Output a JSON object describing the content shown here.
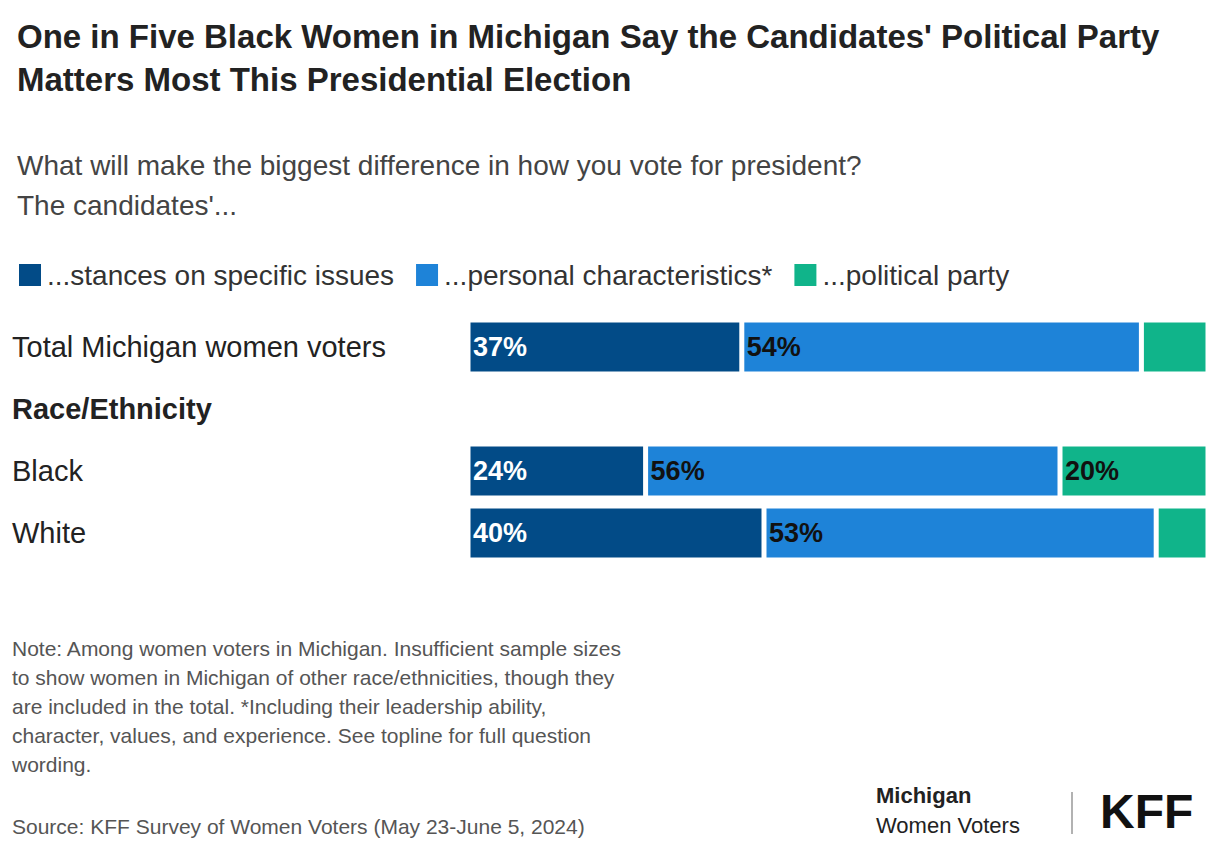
{
  "chart_data": {
    "type": "bar",
    "orientation": "horizontal",
    "stacked": true,
    "data_labels": true,
    "tick_labels": "y",
    "legend": "top-left",
    "title": "One in Five Black Women in Michigan Say the Candidates' Political Party Matters Most This Presidential Election",
    "subtitle": "What will make the biggest difference in how you vote for president? The candidates'...",
    "categories": [
      "Total Michigan women voters",
      "Race/Ethnicity",
      "Black",
      "White"
    ],
    "xlim": [
      0,
      100
    ],
    "series": [
      {
        "name": "...stances on specific issues",
        "color": "#024b87",
        "values": [
          37,
          null,
          24,
          40
        ],
        "value_labels": [
          "37%",
          null,
          "24%",
          "40%"
        ]
      },
      {
        "name": "...personal characteristics*",
        "color": "#1e83d8",
        "values": [
          54,
          null,
          56,
          53
        ],
        "value_labels": [
          "54%",
          null,
          "56%",
          "53%"
        ]
      },
      {
        "name": "...political party",
        "color": "#10b48a",
        "values": [
          9,
          null,
          20,
          7
        ],
        "value_labels": [
          null,
          null,
          "20%",
          null
        ]
      }
    ],
    "note": "Note: Among women voters in Michigan. Insufficient sample sizes to show women in Michigan of other race/ethnicities, though they are included in the total. *Including their leadership ability, character, values, and experience. See topline for full question wording.",
    "source": "Source: KFF Survey of Women Voters (May 23-June 5, 2024)",
    "logo": [
      "Michigan",
      "Women Voters",
      "KFF"
    ]
  }
}
